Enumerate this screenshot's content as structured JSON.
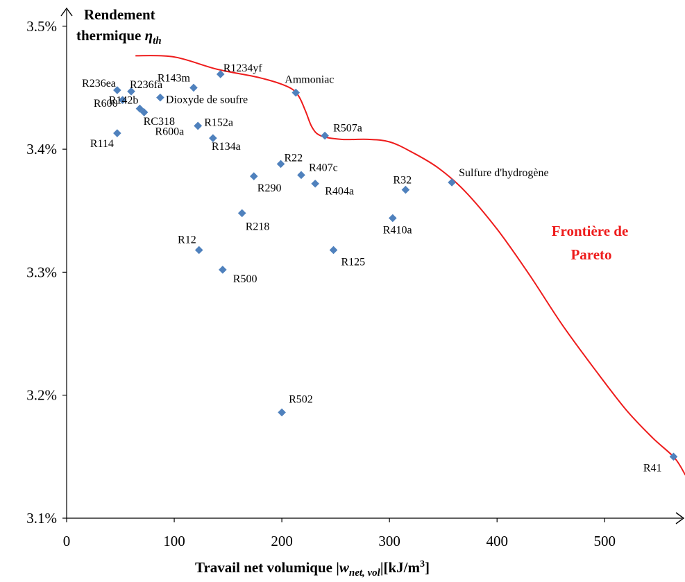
{
  "chart_data": {
    "type": "scatter",
    "title": "",
    "ylabel_line1": "Rendement",
    "ylabel_line2_text": "thermique ",
    "ylabel_symbol": "η",
    "ylabel_symbol_sub": "th",
    "xlabel_prefix": "Travail net volumique |",
    "xlabel_symbol": "w",
    "xlabel_symbol_sub": "net, vol",
    "xlabel_suffix": "|[kJ/m",
    "xlabel_suffix_sup": "3",
    "xlabel_suffix_end": "]",
    "xlim": [
      0,
      575
    ],
    "ylim": [
      3.1,
      3.5
    ],
    "x_ticks": [
      0,
      100,
      200,
      300,
      400,
      500
    ],
    "y_ticks": [
      {
        "value": 3.1,
        "label": "3.1%"
      },
      {
        "value": 3.2,
        "label": "3.2%"
      },
      {
        "value": 3.3,
        "label": "3.3%"
      },
      {
        "value": 3.4,
        "label": "3.4%"
      },
      {
        "value": 3.5,
        "label": "3.5%"
      }
    ],
    "marker_color": "#4f81bd",
    "points": [
      {
        "label": "R1234yf",
        "x": 143,
        "y": 3.461
      },
      {
        "label": "R236ea",
        "x": 47,
        "y": 3.448
      },
      {
        "label": "R236fa",
        "x": 60,
        "y": 3.447
      },
      {
        "label": "R143m",
        "x": 118,
        "y": 3.45
      },
      {
        "label": "Ammoniac",
        "x": 213,
        "y": 3.446
      },
      {
        "label": "R600",
        "x": 52,
        "y": 3.44
      },
      {
        "label": "Dioxyde de soufre",
        "x": 87,
        "y": 3.442
      },
      {
        "label": "RC318",
        "x": 72,
        "y": 3.43
      },
      {
        "label": "R142b",
        "x": 68,
        "y": 3.433
      },
      {
        "label": "R600a",
        "x": 122,
        "y": 3.419
      },
      {
        "label": "R152a",
        "x": 122,
        "y": 3.419
      },
      {
        "label": "R114",
        "x": 47,
        "y": 3.413
      },
      {
        "label": "R134a",
        "x": 136,
        "y": 3.409
      },
      {
        "label": "R507a",
        "x": 240,
        "y": 3.411
      },
      {
        "label": "R22",
        "x": 199,
        "y": 3.388
      },
      {
        "label": "R407c",
        "x": 218,
        "y": 3.379
      },
      {
        "label": "R290",
        "x": 174,
        "y": 3.378
      },
      {
        "label": "R404a",
        "x": 231,
        "y": 3.372
      },
      {
        "label": "R32",
        "x": 315,
        "y": 3.367
      },
      {
        "label": "Sulfure d'hydrogène",
        "x": 358,
        "y": 3.373
      },
      {
        "label": "R218",
        "x": 163,
        "y": 3.348
      },
      {
        "label": "R410a",
        "x": 303,
        "y": 3.344
      },
      {
        "label": "R12",
        "x": 123,
        "y": 3.318
      },
      {
        "label": "R125",
        "x": 248,
        "y": 3.318
      },
      {
        "label": "R500",
        "x": 145,
        "y": 3.302
      },
      {
        "label": "R502",
        "x": 200,
        "y": 3.186
      },
      {
        "label": "R41",
        "x": 564,
        "y": 3.15
      }
    ],
    "pareto": {
      "label_line1": "Frontière de",
      "label_line2": "Pareto",
      "color": "#ee1c1c",
      "curve": [
        [
          64,
          3.476
        ],
        [
          100,
          3.475
        ],
        [
          140,
          3.465
        ],
        [
          180,
          3.458
        ],
        [
          205,
          3.451
        ],
        [
          215,
          3.444
        ],
        [
          222,
          3.431
        ],
        [
          228,
          3.418
        ],
        [
          236,
          3.411
        ],
        [
          255,
          3.408
        ],
        [
          280,
          3.408
        ],
        [
          300,
          3.406
        ],
        [
          320,
          3.398
        ],
        [
          345,
          3.385
        ],
        [
          370,
          3.366
        ],
        [
          400,
          3.335
        ],
        [
          430,
          3.298
        ],
        [
          460,
          3.258
        ],
        [
          490,
          3.222
        ],
        [
          520,
          3.188
        ],
        [
          545,
          3.165
        ],
        [
          565,
          3.149
        ],
        [
          575,
          3.135
        ]
      ]
    }
  }
}
